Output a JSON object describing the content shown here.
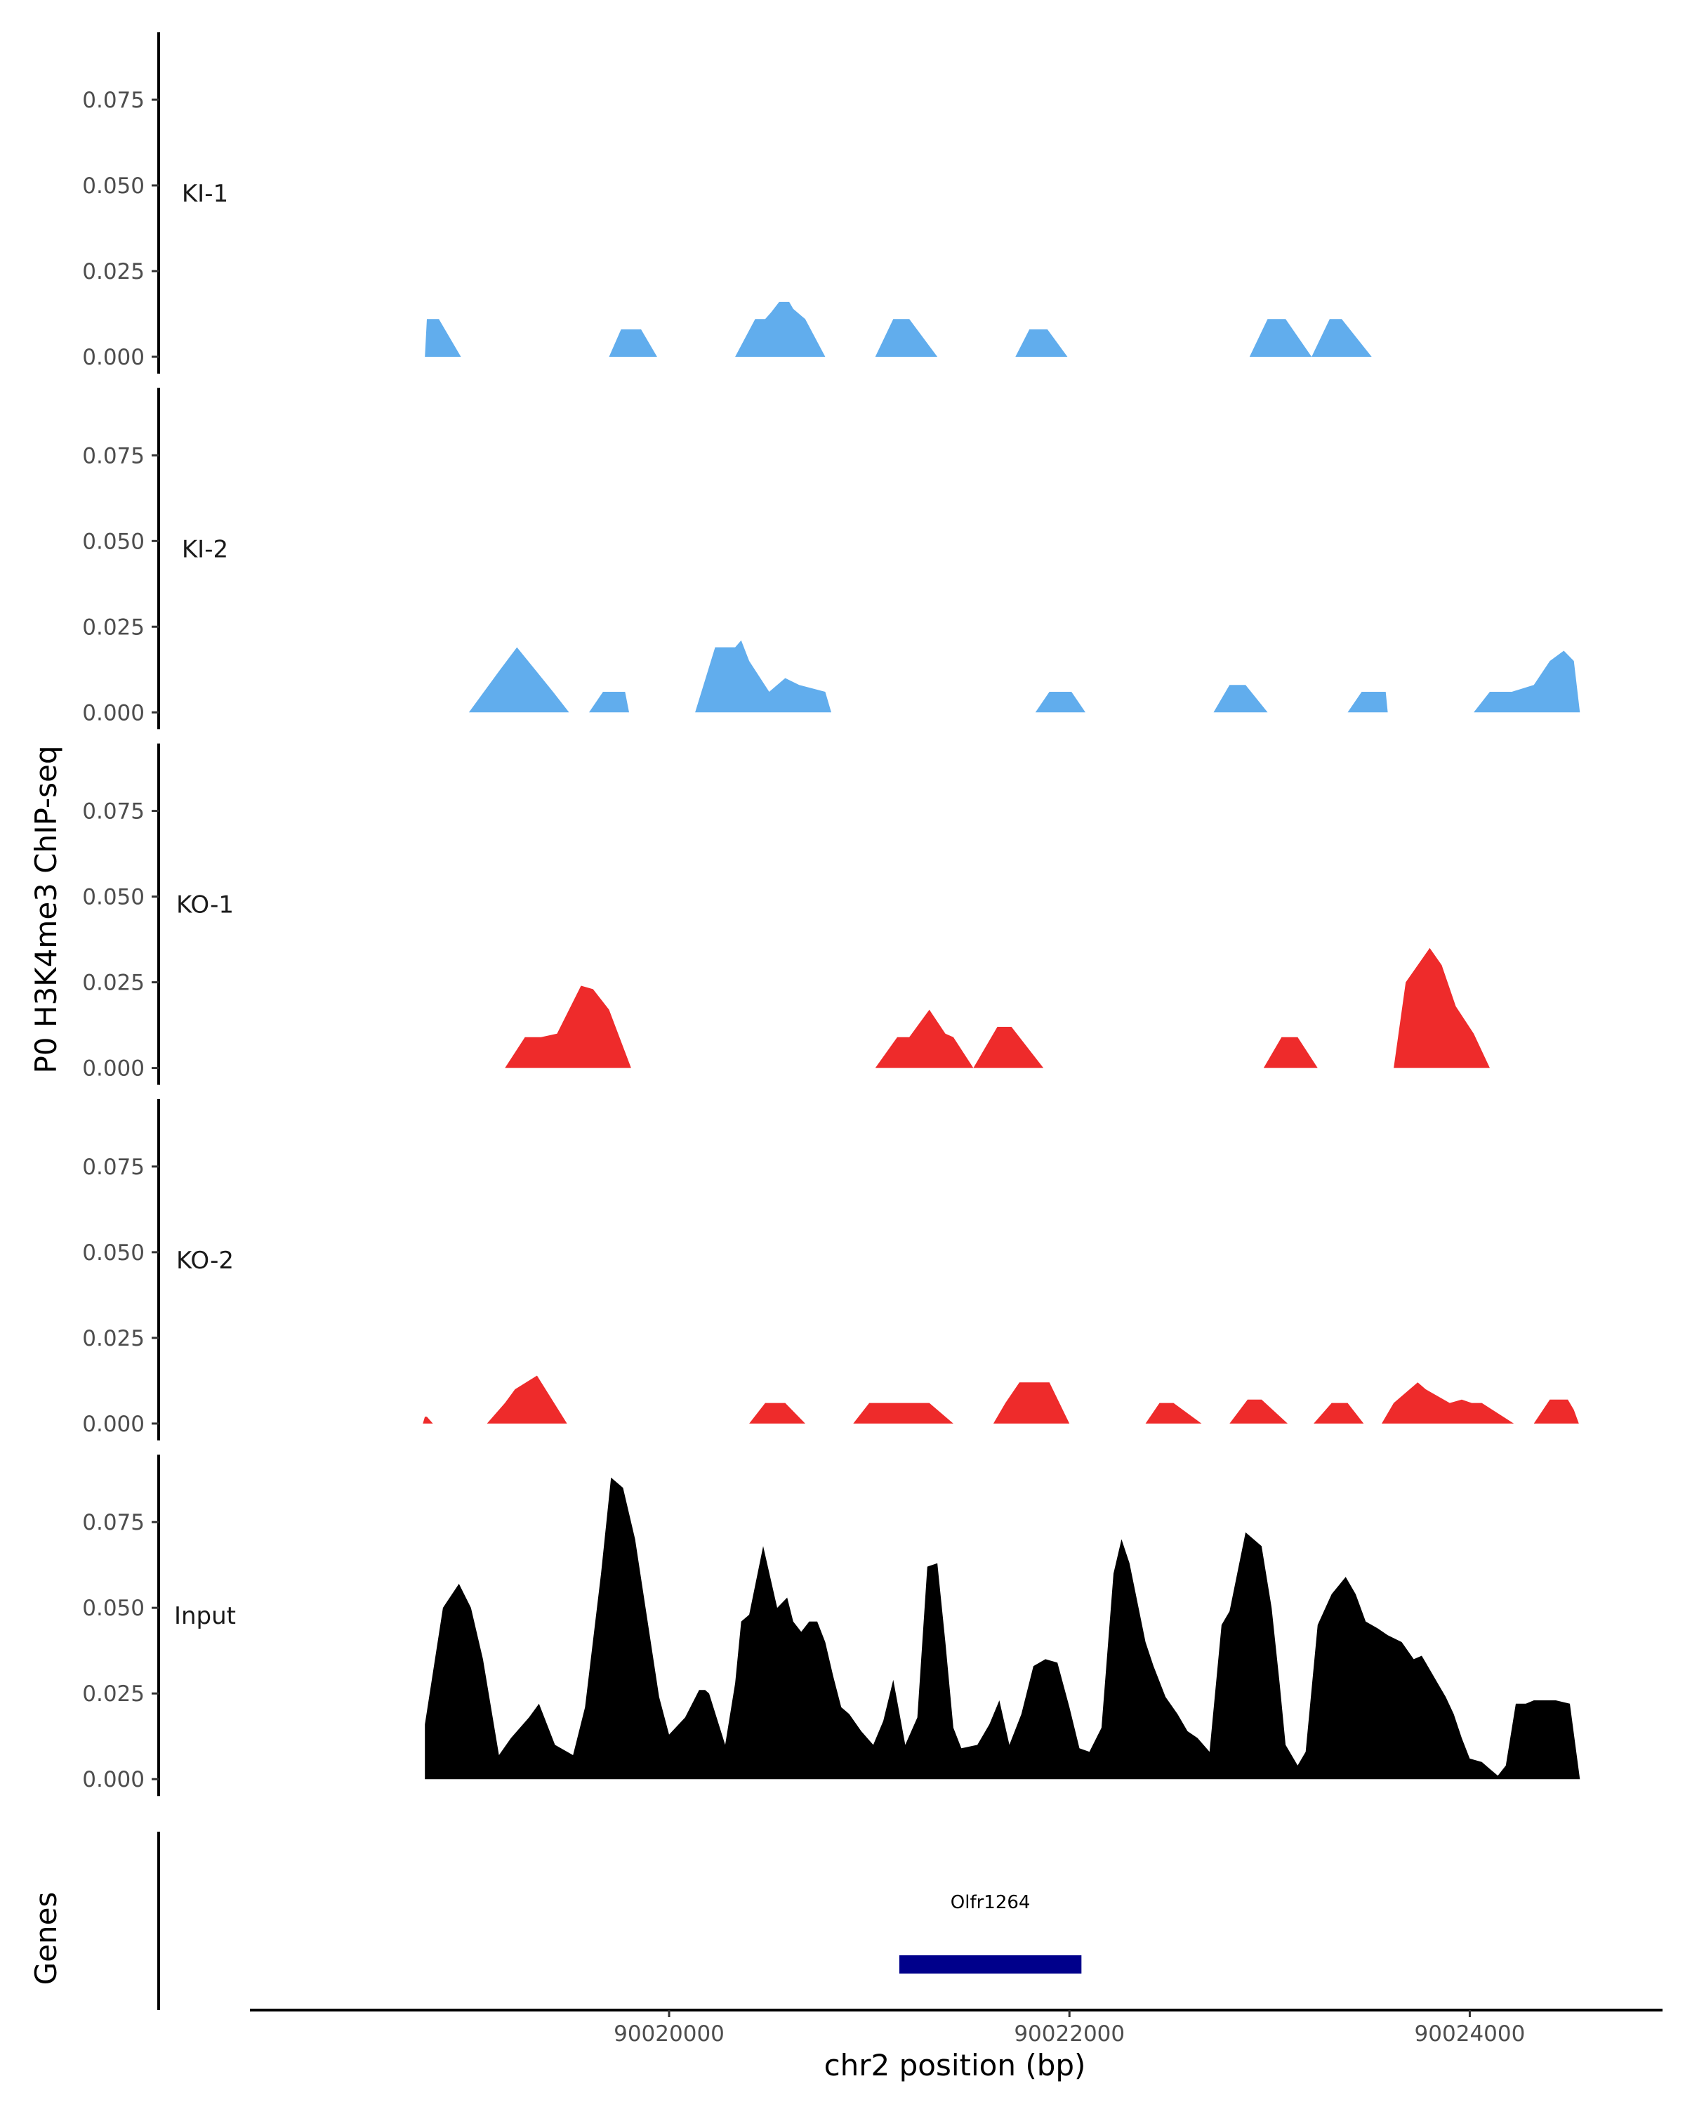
{
  "chart_data": {
    "type": "area",
    "ylabel": "P0 H3K4me3 ChIP-seq",
    "xlabel": "chr2 position (bp)",
    "genes_label": "Genes",
    "xlim": [
      90017920,
      90024970
    ],
    "ylim": [
      -0.003,
      0.098
    ],
    "yticks": [
      0.0,
      0.025,
      0.05,
      0.075
    ],
    "ytick_labels": [
      "0.000",
      "0.025",
      "0.050",
      "0.075"
    ],
    "xticks": [
      90020000,
      90022000,
      90024000
    ],
    "xtick_labels": [
      "90020000",
      "90022000",
      "90024000"
    ],
    "colors": {
      "KI": "#61aded",
      "KO": "#ee2b2b",
      "Input": "#000000",
      "gene": "#00008b"
    },
    "tracks": [
      {
        "name": "KI-1",
        "color": "#61aded",
        "x": [
          90018780,
          90018790,
          90018850,
          90018960,
          90019700,
          90019760,
          90019860,
          90019940,
          90020330,
          90020430,
          90020480,
          90020510,
          90020550,
          90020600,
          90020620,
          90020680,
          90020780,
          90021030,
          90021120,
          90021200,
          90021340,
          90021730,
          90021800,
          90021890,
          90021990,
          90022900,
          90022990,
          90023080,
          90023210,
          90023210,
          90023300,
          90023360,
          90023510
        ],
        "y": [
          0,
          0.011,
          0.011,
          0,
          0,
          0.008,
          0.008,
          0,
          0,
          0.011,
          0.011,
          0.013,
          0.016,
          0.016,
          0.014,
          0.011,
          0,
          0,
          0.011,
          0.011,
          0,
          0,
          0.008,
          0.008,
          0,
          0,
          0.011,
          0.011,
          0,
          0,
          0.011,
          0.011,
          0
        ]
      },
      {
        "name": "KI-2",
        "color": "#61aded",
        "x": [
          90019000,
          90019150,
          90019240,
          90019420,
          90019500,
          90019600,
          90019670,
          90019780,
          90019800,
          90020130,
          90020230,
          90020330,
          90020360,
          90020400,
          90020500,
          90020540,
          90020580,
          90020650,
          90020780,
          90020810,
          90021830,
          90021900,
          90022010,
          90022080,
          90022720,
          90022800,
          90022880,
          90022990,
          90023390,
          90023460,
          90023580,
          90023590,
          90024020,
          90024100,
          90024210,
          90024320,
          90024400,
          90024470,
          90024520,
          90024550
        ],
        "y": [
          0,
          0.012,
          0.019,
          0.006,
          0,
          0,
          0.006,
          0.006,
          0,
          0,
          0.019,
          0.019,
          0.021,
          0.015,
          0.006,
          0.008,
          0.01,
          0.008,
          0.006,
          0,
          0,
          0.006,
          0.006,
          0,
          0,
          0.008,
          0.008,
          0,
          0,
          0.006,
          0.006,
          0,
          0,
          0.006,
          0.006,
          0.008,
          0.015,
          0.018,
          0.015,
          0
        ]
      },
      {
        "name": "KO-1",
        "color": "#ee2b2b",
        "x": [
          90019180,
          90019280,
          90019360,
          90019440,
          90019560,
          90019620,
          90019700,
          90019810,
          90021030,
          90021140,
          90021200,
          90021300,
          90021380,
          90021420,
          90021520,
          90021640,
          90021710,
          90021870,
          90022970,
          90023060,
          90023140,
          90023240,
          90023620,
          90023680,
          90023740,
          90023800,
          90023860,
          90023930,
          90024020,
          90024100
        ],
        "y": [
          0,
          0.009,
          0.009,
          0.01,
          0.024,
          0.023,
          0.017,
          0,
          0,
          0.009,
          0.009,
          0.017,
          0.01,
          0.009,
          0,
          0.012,
          0.012,
          0,
          0,
          0.009,
          0.009,
          0,
          0,
          0.025,
          0.03,
          0.035,
          0.03,
          0.018,
          0.01,
          0
        ]
      },
      {
        "name": "KO-2",
        "color": "#ee2b2b",
        "x": [
          90018770,
          90018780,
          90018790,
          90018820,
          90019090,
          90019180,
          90019230,
          90019340,
          90019490,
          90020400,
          90020480,
          90020580,
          90020680,
          90020920,
          90021000,
          90021300,
          90021420,
          90021620,
          90021680,
          90021750,
          90021900,
          90022000,
          90022380,
          90022450,
          90022520,
          90022660,
          90022800,
          90022890,
          90022960,
          90023090,
          90023220,
          90023310,
          90023390,
          90023470,
          90023560,
          90023620,
          90023740,
          90023780,
          90023900,
          90023960,
          90024010,
          90024060,
          90024220,
          90024320,
          90024400,
          90024490,
          90024520,
          90024545
        ],
        "y": [
          0,
          0.002,
          0.002,
          0,
          0,
          0.006,
          0.01,
          0.014,
          0,
          0,
          0.006,
          0.006,
          0,
          0,
          0.006,
          0.006,
          0,
          0,
          0.006,
          0.012,
          0.012,
          0,
          0,
          0.006,
          0.006,
          0,
          0,
          0.007,
          0.007,
          0,
          0,
          0.006,
          0.006,
          0,
          0,
          0.006,
          0.012,
          0.01,
          0.006,
          0.007,
          0.006,
          0.006,
          0,
          0,
          0.007,
          0.007,
          0.004,
          0
        ]
      },
      {
        "name": "Input",
        "color": "#000000",
        "x": [
          90018780,
          90018870,
          90018950,
          90019010,
          90019070,
          90019150,
          90019210,
          90019300,
          90019350,
          90019430,
          90019520,
          90019580,
          90019660,
          90019710,
          90019770,
          90019830,
          90019950,
          90020000,
          90020080,
          90020150,
          90020180,
          90020200,
          90020280,
          90020330,
          90020360,
          90020400,
          90020470,
          90020540,
          90020590,
          90020620,
          90020660,
          90020700,
          90020740,
          90020780,
          90020820,
          90020860,
          90020900,
          90020960,
          90021020,
          90021070,
          90021120,
          90021180,
          90021240,
          90021290,
          90021340,
          90021380,
          90021420,
          90021460,
          90021540,
          90021600,
          90021650,
          90021700,
          90021760,
          90021820,
          90021880,
          90021940,
          90022000,
          90022050,
          90022100,
          90022160,
          90022220,
          90022260,
          90022300,
          90022380,
          90022420,
          90022480,
          90022540,
          90022590,
          90022640,
          90022700,
          90022760,
          90022800,
          90022880,
          90022960,
          90023010,
          90023050,
          90023080,
          90023140,
          90023180,
          90023240,
          90023310,
          90023380,
          90023430,
          90023480,
          90023540,
          90023590,
          90023660,
          90023720,
          90023760,
          90023800,
          90023840,
          90023880,
          90023920,
          90023960,
          90024000,
          90024060,
          90024100,
          90024140,
          90024180,
          90024230,
          90024280,
          90024320,
          90024380,
          90024430,
          90024500,
          90024550
        ],
        "y": [
          0.016,
          0.05,
          0.057,
          0.05,
          0.035,
          0.007,
          0.012,
          0.018,
          0.022,
          0.01,
          0.007,
          0.021,
          0.06,
          0.088,
          0.085,
          0.07,
          0.024,
          0.013,
          0.018,
          0.026,
          0.026,
          0.025,
          0.01,
          0.028,
          0.046,
          0.048,
          0.068,
          0.05,
          0.053,
          0.046,
          0.043,
          0.046,
          0.046,
          0.04,
          0.03,
          0.021,
          0.019,
          0.014,
          0.01,
          0.017,
          0.029,
          0.01,
          0.018,
          0.062,
          0.063,
          0.04,
          0.015,
          0.009,
          0.01,
          0.016,
          0.023,
          0.01,
          0.019,
          0.033,
          0.035,
          0.034,
          0.021,
          0.009,
          0.008,
          0.015,
          0.06,
          0.07,
          0.063,
          0.04,
          0.033,
          0.024,
          0.019,
          0.014,
          0.012,
          0.008,
          0.045,
          0.049,
          0.072,
          0.068,
          0.05,
          0.028,
          0.01,
          0.004,
          0.008,
          0.045,
          0.054,
          0.059,
          0.054,
          0.046,
          0.044,
          0.042,
          0.04,
          0.035,
          0.036,
          0.032,
          0.028,
          0.024,
          0.019,
          0.012,
          0.006,
          0.005,
          0.003,
          0.001,
          0.004,
          0.022,
          0.022,
          0.023,
          0.023,
          0.023,
          0.022,
          0.0
        ],
        "note_fill_to_zero": true
      }
    ],
    "genes": [
      {
        "name": "Olfr1264",
        "start": 90021150,
        "end": 90022060,
        "color": "#00008b"
      }
    ]
  }
}
